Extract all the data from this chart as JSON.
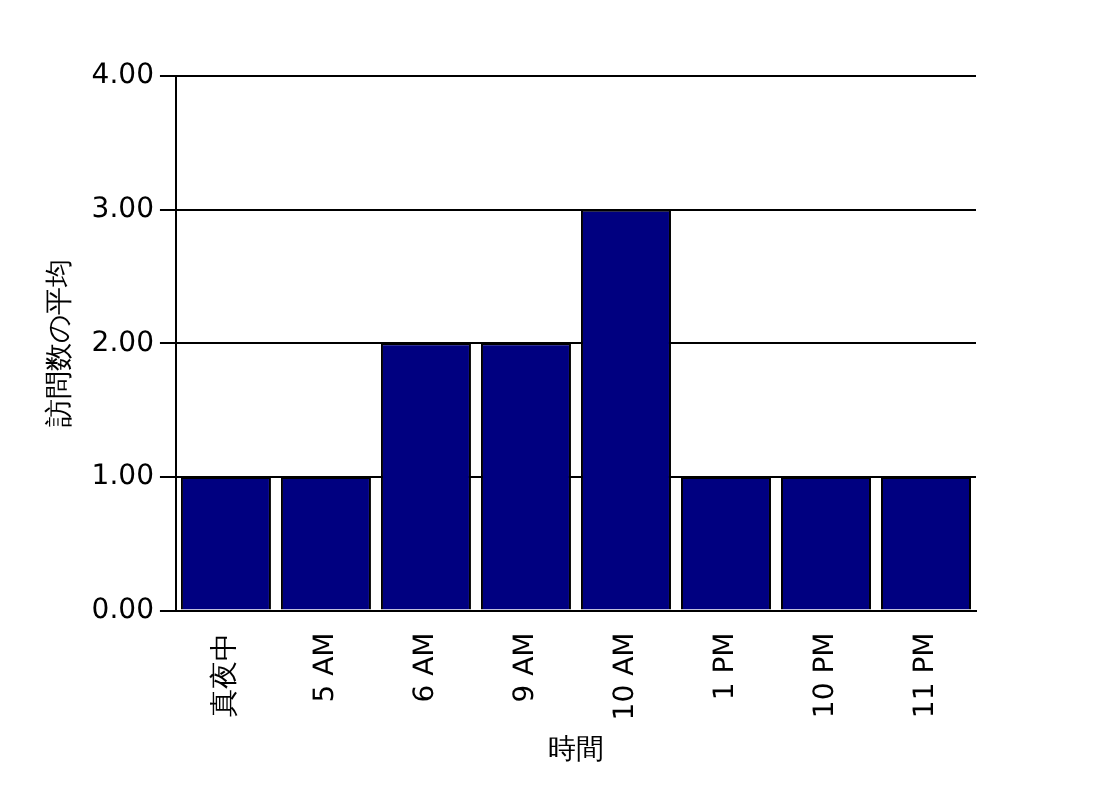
{
  "chart_data": {
    "type": "bar",
    "xlabel": "時間",
    "ylabel": "訪問数の平均",
    "categories": [
      "真夜中",
      "5 AM",
      "6 AM",
      "9 AM",
      "10 AM",
      "1 PM",
      "10 PM",
      "11 PM"
    ],
    "values": [
      1,
      1,
      2,
      2,
      3,
      1,
      1,
      1
    ],
    "color": "#000080",
    "ylim": [
      0,
      4
    ],
    "yticks": [
      {
        "value": 0,
        "label": "0.00"
      },
      {
        "value": 1,
        "label": "1.00"
      },
      {
        "value": 2,
        "label": "2.00"
      },
      {
        "value": 3,
        "label": "3.00"
      },
      {
        "value": 4,
        "label": "4.00"
      }
    ],
    "grid": "y",
    "legend": false
  }
}
